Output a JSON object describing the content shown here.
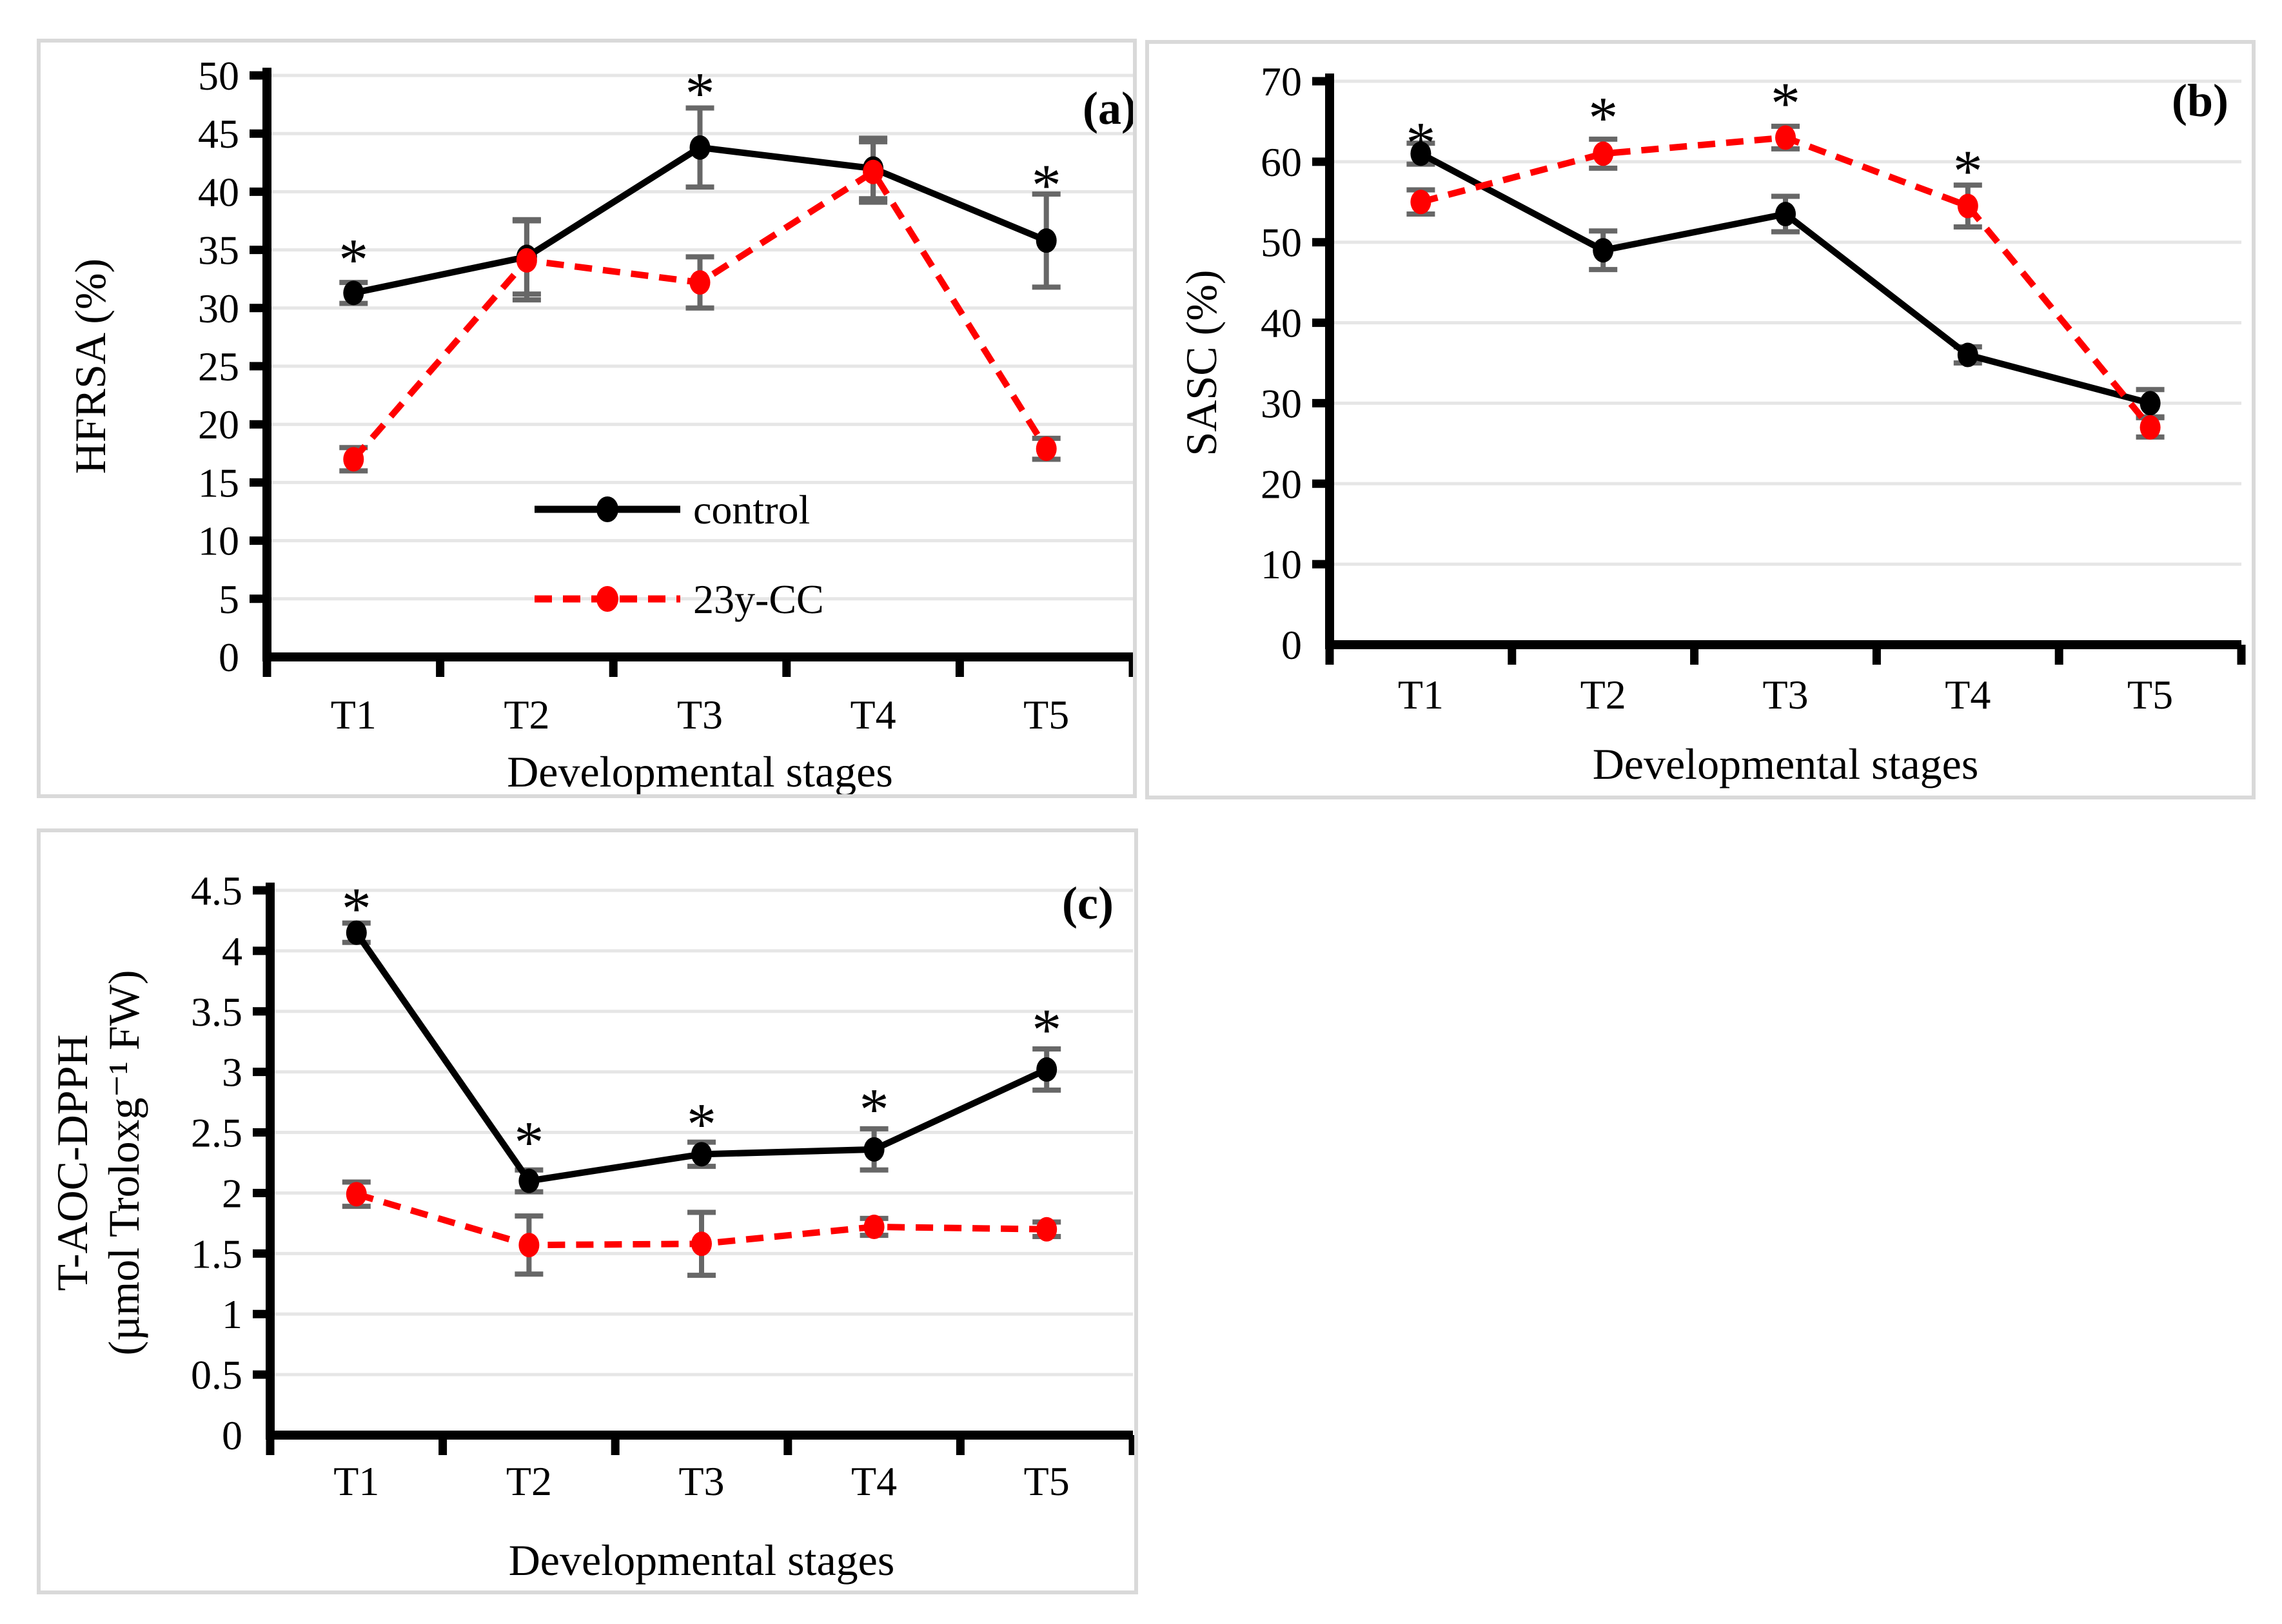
{
  "figure": {
    "background_color": "#ffffff",
    "panel_border_color": "#d9d9d9",
    "grid_color": "#e6e6e6",
    "axis_color": "#000000",
    "error_bar_color": "#676767",
    "significance_symbol": "*"
  },
  "legend": {
    "items": [
      {
        "label": "control",
        "color": "#000000",
        "line_style": "solid"
      },
      {
        "label": "23y-CC",
        "color": "#ff0000",
        "line_style": "dashed"
      }
    ],
    "position": "inside-bottom-center-of-panel-a"
  },
  "chart_data": [
    {
      "id": "a",
      "panel_label": "(a)",
      "type": "line",
      "xlabel": "Developmental stages",
      "ylabel_lines": [
        "HFRSA (%)"
      ],
      "ylim": [
        0,
        50
      ],
      "ytick_labels": [
        "0",
        "5",
        "10",
        "15",
        "20",
        "25",
        "30",
        "35",
        "40",
        "45",
        "50"
      ],
      "categories": [
        "T1",
        "T2",
        "T3",
        "T4",
        "T5"
      ],
      "grid": "horizontal",
      "show_legend": true,
      "series": [
        {
          "name": "control",
          "color": "#000000",
          "line_style": "solid",
          "marker": "circle",
          "values": [
            31.3,
            34.4,
            43.8,
            42.0,
            35.8
          ],
          "error_bars": [
            0.9,
            3.2,
            3.4,
            2.6,
            4.0
          ]
        },
        {
          "name": "23y-CC",
          "color": "#ff0000",
          "line_style": "dashed",
          "marker": "circle",
          "values": [
            17.0,
            34.1,
            32.2,
            41.7,
            17.9
          ],
          "error_bars": [
            1.0,
            3.4,
            2.2,
            2.6,
            0.9
          ]
        }
      ],
      "significance_marks": [
        {
          "category": "T1",
          "y": 34.9
        },
        {
          "category": "T3",
          "y": 49.2
        },
        {
          "category": "T5",
          "y": 41.3
        }
      ]
    },
    {
      "id": "b",
      "panel_label": "(b)",
      "type": "line",
      "xlabel": "Developmental stages",
      "ylabel_lines": [
        "SASC (%)"
      ],
      "ylim": [
        0,
        70
      ],
      "ytick_labels": [
        "0",
        "10",
        "20",
        "30",
        "40",
        "50",
        "60",
        "70"
      ],
      "categories": [
        "T1",
        "T2",
        "T3",
        "T4",
        "T5"
      ],
      "grid": "horizontal",
      "show_legend": false,
      "series": [
        {
          "name": "control",
          "color": "#000000",
          "line_style": "solid",
          "marker": "circle",
          "values": [
            61.0,
            49.0,
            53.5,
            36.0,
            30.0
          ],
          "error_bars": [
            1.3,
            2.4,
            2.2,
            1.0,
            1.7
          ]
        },
        {
          "name": "23y-CC",
          "color": "#ff0000",
          "line_style": "dashed",
          "marker": "circle",
          "values": [
            55.0,
            61.0,
            63.0,
            54.5,
            27.0
          ],
          "error_bars": [
            1.5,
            1.8,
            1.4,
            2.6,
            1.2
          ]
        }
      ],
      "significance_marks": [
        {
          "category": "T1",
          "y": 63.4
        },
        {
          "category": "T2",
          "y": 66.5
        },
        {
          "category": "T3",
          "y": 68.3
        },
        {
          "category": "T4",
          "y": 59.9
        }
      ]
    },
    {
      "id": "c",
      "panel_label": "(c)",
      "type": "line",
      "xlabel": "Developmental stages",
      "ylabel_lines": [
        "T-AOC-DPPH",
        "(µmol Troloxg⁻¹ FW)"
      ],
      "ylim": [
        0,
        4.5
      ],
      "ytick_labels": [
        "0",
        "0.5",
        "1",
        "1.5",
        "2",
        "2.5",
        "3",
        "3.5",
        "4",
        "4.5"
      ],
      "categories": [
        "T1",
        "T2",
        "T3",
        "T4",
        "T5"
      ],
      "grid": "horizontal",
      "show_legend": false,
      "series": [
        {
          "name": "control",
          "color": "#000000",
          "line_style": "solid",
          "marker": "circle",
          "values": [
            4.15,
            2.1,
            2.32,
            2.36,
            3.02
          ],
          "error_bars": [
            0.08,
            0.09,
            0.1,
            0.17,
            0.17
          ]
        },
        {
          "name": "23y-CC",
          "color": "#ff0000",
          "line_style": "dashed",
          "marker": "circle",
          "values": [
            1.99,
            1.57,
            1.58,
            1.72,
            1.7
          ],
          "error_bars": [
            0.1,
            0.24,
            0.26,
            0.07,
            0.06
          ]
        }
      ],
      "significance_marks": [
        {
          "category": "T1",
          "y": 4.42
        },
        {
          "category": "T2",
          "y": 2.49
        },
        {
          "category": "T3",
          "y": 2.64
        },
        {
          "category": "T4",
          "y": 2.76
        },
        {
          "category": "T5",
          "y": 3.42
        }
      ]
    }
  ]
}
